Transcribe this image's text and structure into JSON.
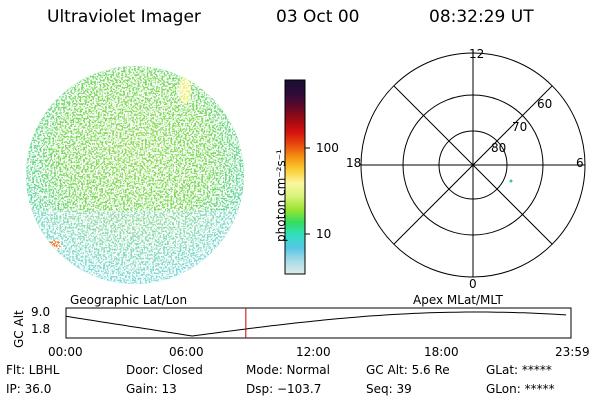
{
  "header": {
    "title": "Ultraviolet Imager",
    "date": "03 Oct 00",
    "time": "08:32:29 UT"
  },
  "colorbar": {
    "unit_label": "photon cm⁻²s⁻¹",
    "ticks": [
      "100",
      "10"
    ],
    "stops": [
      "#1a1030",
      "#2b0a3a",
      "#5a0a2a",
      "#9a0a14",
      "#d41010",
      "#e84a10",
      "#f59510",
      "#fbd03a",
      "#fcf7a0",
      "#d8f27a",
      "#9ce430",
      "#35dc60",
      "#30dfc0",
      "#58c6e6",
      "#a7dde6",
      "#dfe9ea"
    ]
  },
  "polar_plot": {
    "lat_labels": [
      "60",
      "70",
      "80"
    ],
    "mlt_labels": {
      "top": "12",
      "left": "18",
      "right": "6",
      "bottom": "0"
    }
  },
  "timeline": {
    "left_title": "Geographic Lat/Lon",
    "right_title": "Apex MLat/MLT",
    "axis_label": "GC Alt",
    "y_ticks": [
      "9.0",
      "1.8"
    ],
    "x_ticks": [
      "00:00",
      "06:00",
      "12:00",
      "18:00",
      "23:59"
    ],
    "current_time_hours": 8.54,
    "marker_color": "#cc0000"
  },
  "footer": {
    "flt": "Flt: LBHL",
    "door": "Door: Closed",
    "mode": "Mode: Normal",
    "gcalt": "GC Alt: 5.6 Re",
    "glat": "GLat: *****",
    "ip": "IP: 36.0",
    "gain": "Gain: 13",
    "dsp": "Dsp: −103.7",
    "seq": "Seq: 39",
    "glon": "GLon: *****"
  }
}
